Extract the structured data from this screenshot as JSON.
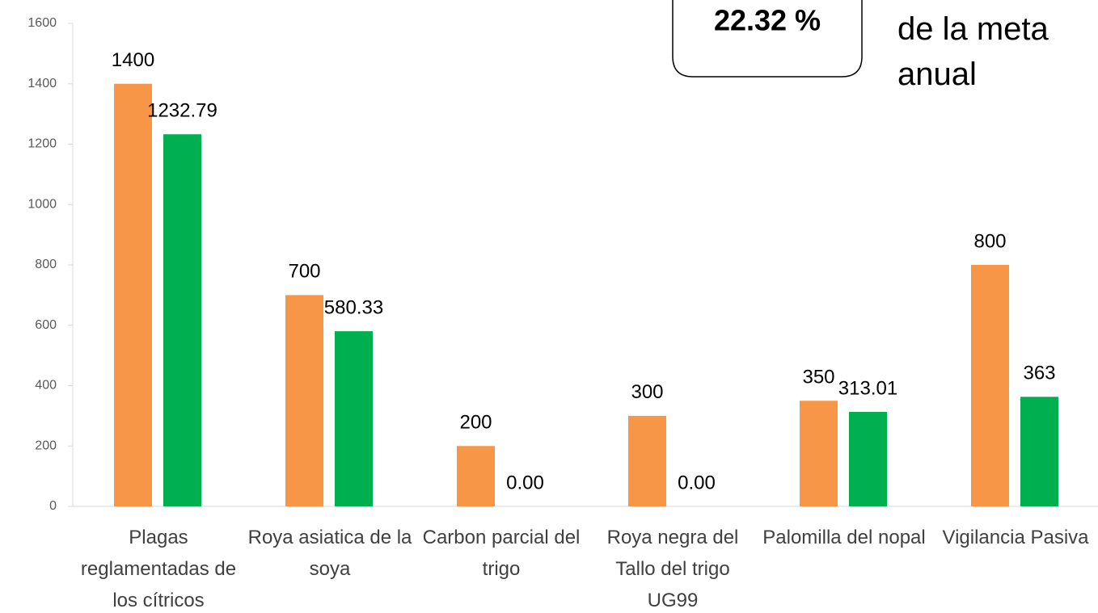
{
  "chart_data": {
    "type": "bar",
    "categories": [
      "Plagas reglamentadas de los cítricos",
      "Roya asiatica de la soya",
      "Carbon parcial del trigo",
      "Roya negra del Tallo del trigo UG99",
      "Palomilla del nopal",
      "Vigilancia Pasiva"
    ],
    "series": [
      {
        "color": "#f79646",
        "values": [
          1400,
          700,
          200,
          300,
          350,
          800
        ]
      },
      {
        "color": "#00b050",
        "values": [
          1232.79,
          580.33,
          0,
          0,
          313.01,
          363
        ],
        "value_labels": [
          "1232.79",
          "580.33",
          "0.00",
          "0.00",
          "313.01",
          "363"
        ]
      }
    ],
    "ylim": [
      0,
      1600
    ],
    "yticks": [
      0,
      200,
      400,
      600,
      800,
      1000,
      1200,
      1400,
      1600
    ],
    "grid": false,
    "annotations": [
      "22.32 %",
      "de la meta anual"
    ]
  }
}
